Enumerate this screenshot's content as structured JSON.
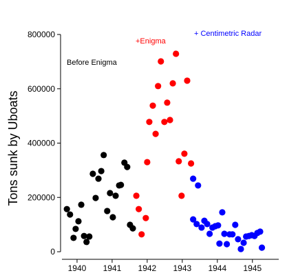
{
  "chart_data": {
    "type": "scatter",
    "ylabel": "Tons sunk by Uboats",
    "xlim": [
      1939.53,
      1945.75
    ],
    "ylim": [
      0,
      800000
    ],
    "xticks": [
      1940,
      1941,
      1942,
      1943,
      1944,
      1945
    ],
    "yticks": [
      0,
      200000,
      400000,
      600000,
      800000
    ],
    "grid": false,
    "series": [
      {
        "name": "Before Enigma",
        "color": "#000000",
        "x": [
          1939.71,
          1939.8,
          1939.9,
          1939.96,
          1940.04,
          1940.12,
          1940.2,
          1940.27,
          1940.35,
          1940.45,
          1940.53,
          1940.61,
          1940.69,
          1940.76,
          1940.86,
          1940.94,
          1941.02,
          1941.1,
          1941.2,
          1941.25,
          1941.35,
          1941.43,
          1941.51,
          1941.59
        ],
        "values": [
          157000,
          137000,
          51000,
          84000,
          112000,
          173000,
          58000,
          36000,
          56000,
          287000,
          198000,
          269000,
          297000,
          356000,
          150000,
          216000,
          127000,
          206000,
          244000,
          246000,
          328000,
          312000,
          99000,
          86000
        ]
      },
      {
        "name": "+Enigma",
        "color": "#ff0000",
        "x": [
          1941.69,
          1941.76,
          1941.84,
          1941.96,
          1942.0,
          1942.06,
          1942.16,
          1942.24,
          1942.31,
          1942.39,
          1942.49,
          1942.57,
          1942.65,
          1942.73,
          1942.82,
          1942.9,
          1942.98,
          1943.06,
          1943.14,
          1943.25
        ],
        "values": [
          206000,
          157000,
          64000,
          124000,
          330000,
          478000,
          538000,
          434000,
          610000,
          701000,
          478000,
          549000,
          485000,
          620000,
          729000,
          333000,
          206000,
          361000,
          630000,
          325000
        ]
      },
      {
        "name": "+ Centimetric Radar",
        "color": "#0000ff",
        "x": [
          1943.31,
          1943.45,
          1943.31,
          1943.41,
          1943.55,
          1943.63,
          1943.71,
          1943.78,
          1943.86,
          1943.94,
          1944.02,
          1944.06,
          1944.14,
          1944.2,
          1944.27,
          1944.35,
          1944.43,
          1944.51,
          1944.59,
          1944.67,
          1944.75,
          1944.82,
          1944.9,
          1944.98,
          1945.06,
          1945.14,
          1945.22,
          1945.27
        ],
        "values": [
          269000,
          244000,
          119000,
          102000,
          89000,
          114000,
          102000,
          66000,
          89000,
          94000,
          97000,
          30000,
          145000,
          66000,
          28000,
          64000,
          64000,
          99000,
          46000,
          10000,
          33000,
          56000,
          58000,
          61000,
          58000,
          69000,
          74000,
          15000
        ]
      }
    ]
  }
}
